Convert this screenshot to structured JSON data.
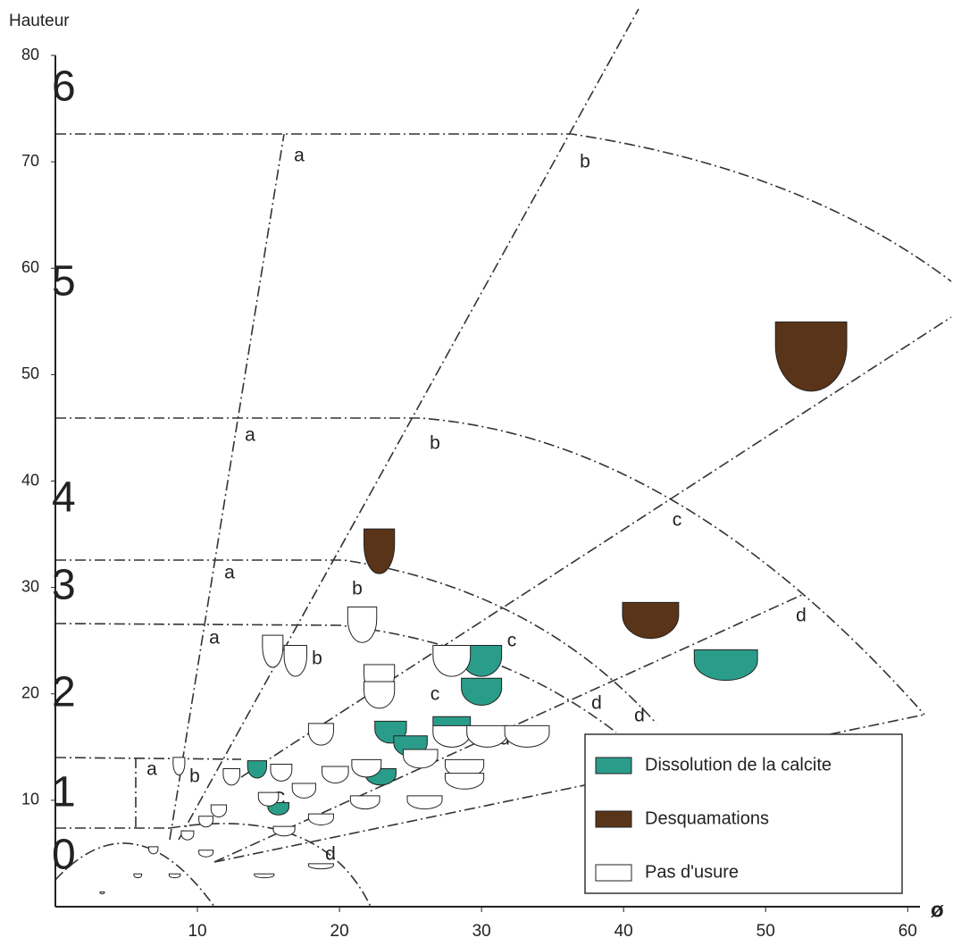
{
  "chart_data": {
    "type": "scatter",
    "y_label": "Hauteur",
    "x_label": "ø",
    "xlim": [
      0,
      63
    ],
    "ylim": [
      0,
      80
    ],
    "xticks": [
      10,
      20,
      30,
      40,
      50,
      60
    ],
    "yticks": [
      10,
      20,
      30,
      40,
      50,
      60,
      70,
      80
    ],
    "size_classes": [
      "0",
      "1",
      "2",
      "3",
      "4",
      "5",
      "6"
    ],
    "zone_letters": [
      "a",
      "a",
      "a",
      "a",
      "a",
      "b",
      "b",
      "b",
      "b",
      "b",
      "c",
      "c",
      "c",
      "C",
      "d",
      "d",
      "d",
      "d",
      "d"
    ],
    "series": [
      {
        "name": "Dissolution de la calcite",
        "color": "#2a9d8a",
        "x": [
          47.2,
          30.0,
          30.0,
          23.6,
          27.9,
          25.0,
          22.9,
          14.2,
          15.7
        ],
        "values": [
          22.7,
          23.1,
          20.2,
          16.4,
          16.8,
          15.1,
          12.2,
          12.9,
          9.2
        ]
      },
      {
        "name": "Desquamations",
        "color": "#5a3418",
        "x": [
          53.2,
          22.8,
          41.9
        ],
        "values": [
          51.7,
          33.4,
          26.9
        ]
      },
      {
        "name": "Pas d'usure",
        "color": "#ffffff",
        "x": [
          21.6,
          15.3,
          16.9,
          27.9,
          22.8,
          22.8,
          18.7,
          27.9,
          30.4,
          33.2,
          25.7,
          21.9,
          15.9,
          19.7,
          28.8,
          8.7,
          12.4,
          17.5,
          15.0,
          21.8,
          26.0,
          28.8,
          11.5,
          10.6,
          18.7,
          9.3,
          16.1,
          10.6,
          6.9,
          5.8,
          8.4,
          14.7,
          18.7,
          3.3
        ],
        "values": [
          26.5,
          24.0,
          23.1,
          23.1,
          21.4,
          19.9,
          16.2,
          16.0,
          16.0,
          16.0,
          13.9,
          13.0,
          12.6,
          12.4,
          13.0,
          13.2,
          12.2,
          10.9,
          10.1,
          9.8,
          9.8,
          11.8,
          9.0,
          8.0,
          8.2,
          6.7,
          7.1,
          5.0,
          5.3,
          2.9,
          2.9,
          2.9,
          3.8,
          1.3
        ]
      }
    ]
  }
}
